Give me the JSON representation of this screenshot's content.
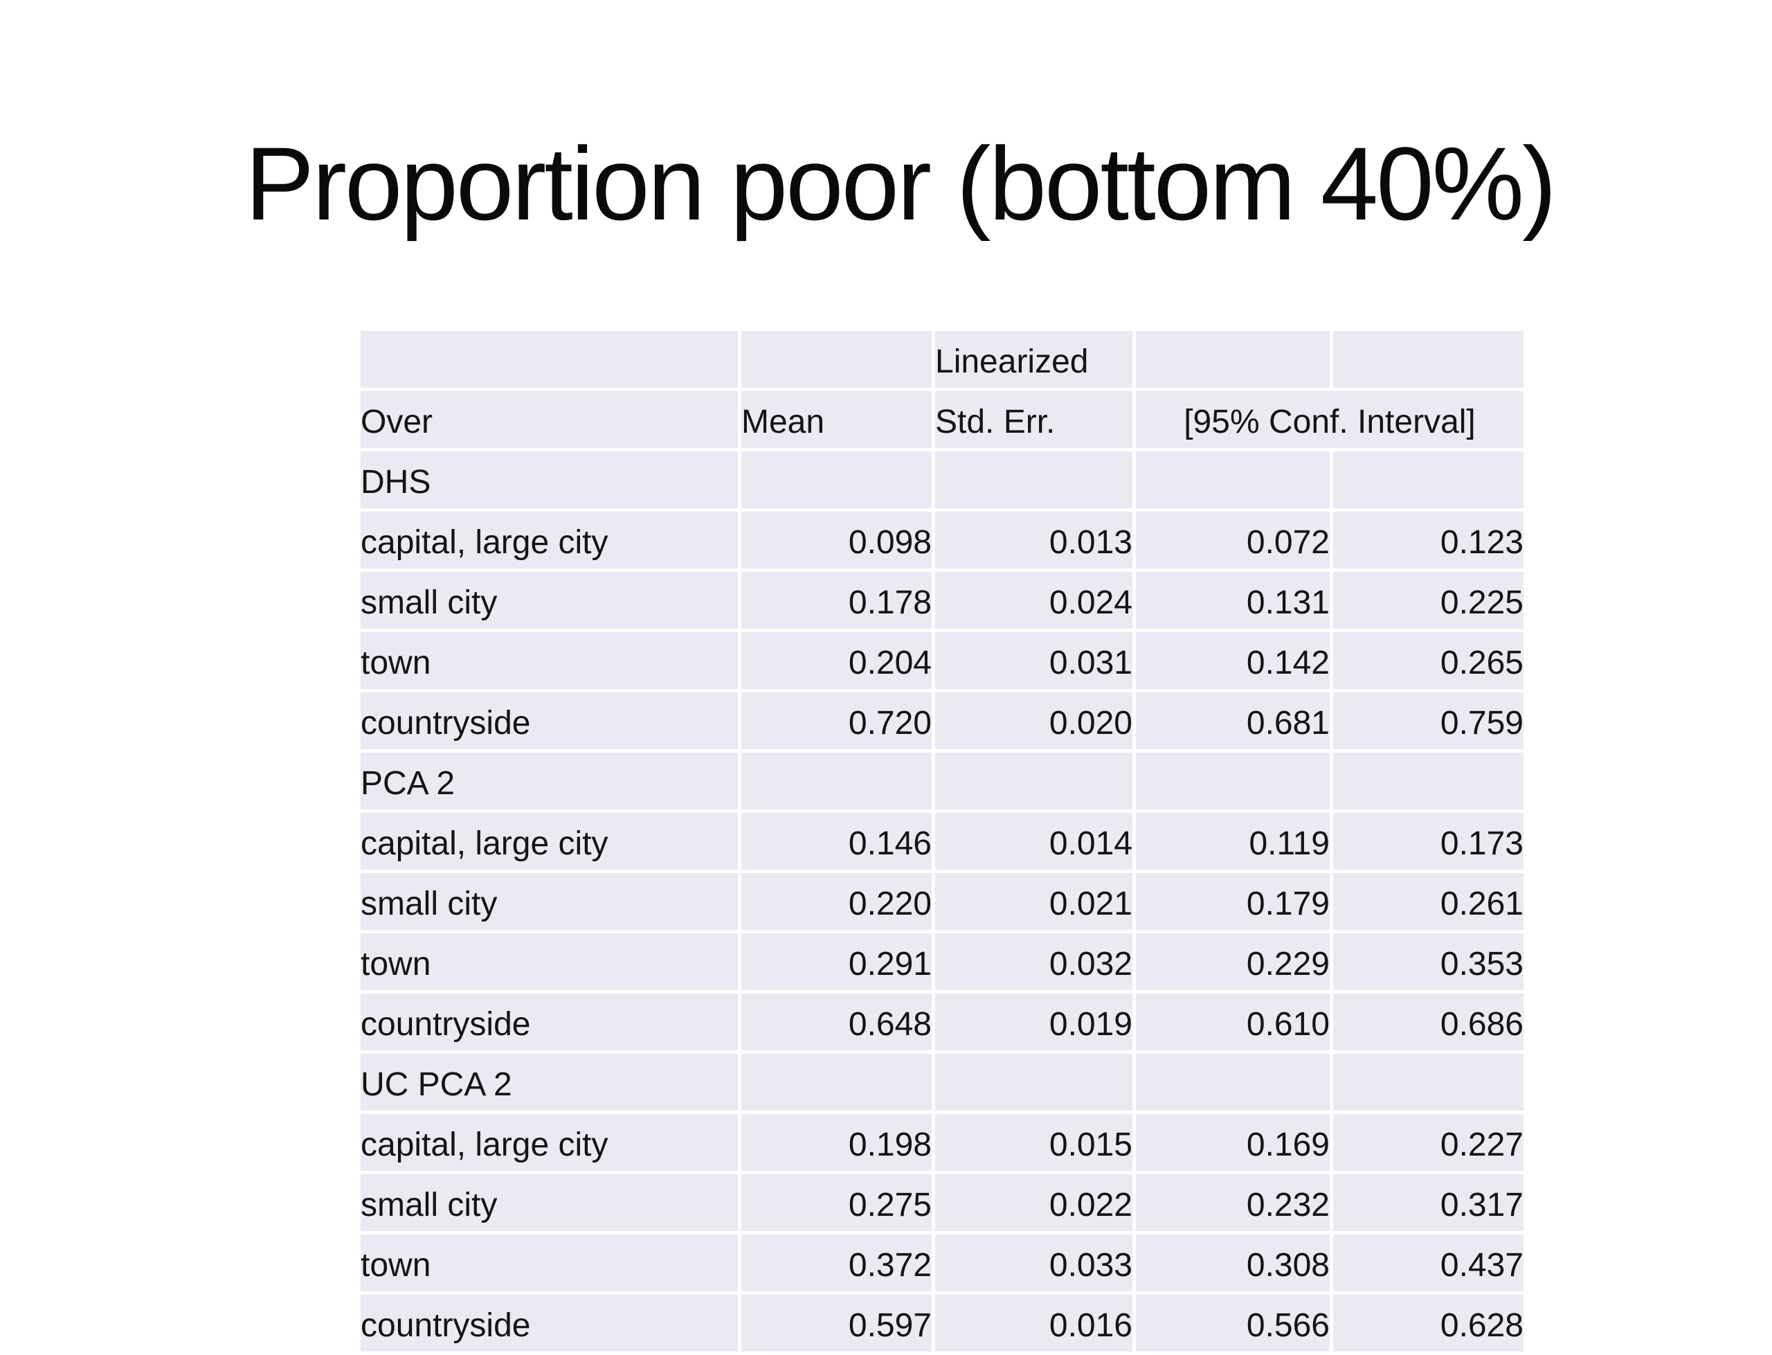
{
  "slide": {
    "title": "Proportion poor (bottom 40%)"
  },
  "colors": {
    "page_bg": "#ffffff",
    "cell_bg": "#e9eaf2",
    "grid_line": "#ffffff",
    "text": "#141414"
  },
  "table": {
    "header": {
      "linearized_label": "Linearized",
      "over_label": "Over",
      "mean_label": "Mean",
      "stderr_label": "Std. Err.",
      "conf_interval_label": "[95% Conf. Interval]"
    },
    "groups": [
      {
        "label": "DHS",
        "rows": [
          {
            "label": "capital, large city",
            "mean": "0.098",
            "se": "0.013",
            "lo": "0.072",
            "hi": "0.123"
          },
          {
            "label": "small city",
            "mean": "0.178",
            "se": "0.024",
            "lo": "0.131",
            "hi": "0.225"
          },
          {
            "label": "town",
            "mean": "0.204",
            "se": "0.031",
            "lo": "0.142",
            "hi": "0.265"
          },
          {
            "label": "countryside",
            "mean": "0.720",
            "se": "0.020",
            "lo": "0.681",
            "hi": "0.759"
          }
        ]
      },
      {
        "label": "PCA 2",
        "rows": [
          {
            "label": "capital, large city",
            "mean": "0.146",
            "se": "0.014",
            "lo": "0.119",
            "hi": "0.173"
          },
          {
            "label": "small city",
            "mean": "0.220",
            "se": "0.021",
            "lo": "0.179",
            "hi": "0.261"
          },
          {
            "label": "town",
            "mean": "0.291",
            "se": "0.032",
            "lo": "0.229",
            "hi": "0.353"
          },
          {
            "label": "countryside",
            "mean": "0.648",
            "se": "0.019",
            "lo": "0.610",
            "hi": "0.686"
          }
        ]
      },
      {
        "label": "UC PCA 2",
        "rows": [
          {
            "label": "capital, large city",
            "mean": "0.198",
            "se": "0.015",
            "lo": "0.169",
            "hi": "0.227"
          },
          {
            "label": "small city",
            "mean": "0.275",
            "se": "0.022",
            "lo": "0.232",
            "hi": "0.317"
          },
          {
            "label": "town",
            "mean": "0.372",
            "se": "0.033",
            "lo": "0.308",
            "hi": "0.437"
          },
          {
            "label": "countryside",
            "mean": "0.597",
            "se": "0.016",
            "lo": "0.566",
            "hi": "0.628"
          }
        ]
      }
    ]
  }
}
